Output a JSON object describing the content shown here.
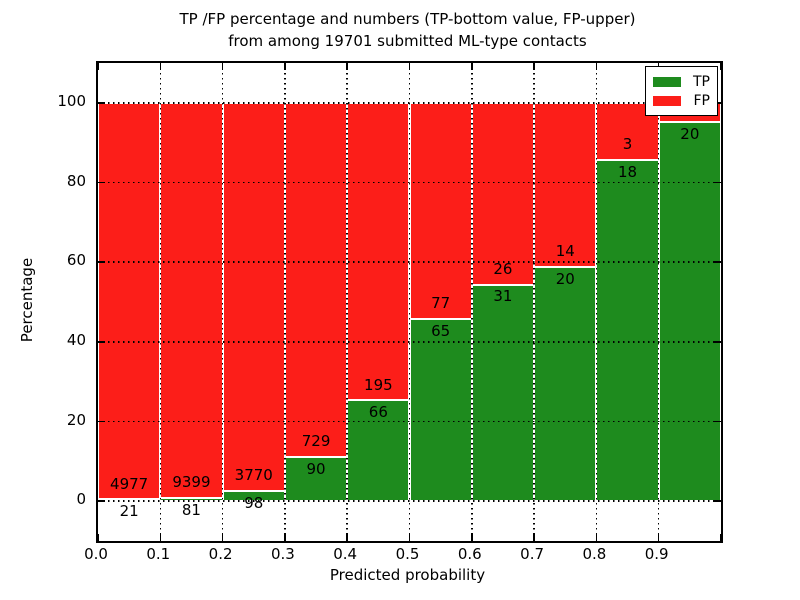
{
  "chart_data": {
    "type": "bar",
    "stacked": true,
    "normalized_to_percent": true,
    "title_line1": "TP /FP percentage and numbers (TP-bottom value, FP-upper)",
    "title_line2": "from among 19701 submitted ML-type contacts",
    "xlabel": "Predicted probability",
    "ylabel": "Percentage",
    "x_tick_labels": [
      "0.0",
      "0.1",
      "0.2",
      "0.3",
      "0.4",
      "0.5",
      "0.6",
      "0.7",
      "0.8",
      "0.9"
    ],
    "y_tick_values": [
      0,
      20,
      40,
      60,
      80,
      100
    ],
    "xlim": [
      0.0,
      1.0
    ],
    "ylim": [
      -10,
      110
    ],
    "grid": true,
    "colors": {
      "tp": "#1e8b1e",
      "fp": "#fc1e19"
    },
    "legend": {
      "position": "upper right",
      "items": [
        {
          "label": "TP",
          "color": "#1e8b1e"
        },
        {
          "label": "FP",
          "color": "#fc1e19"
        }
      ]
    },
    "bars": [
      {
        "bin_start": 0.0,
        "bin_end": 0.1,
        "tp": 21,
        "fp": 4977,
        "tp_label": "21",
        "fp_label": "4977"
      },
      {
        "bin_start": 0.1,
        "bin_end": 0.2,
        "tp": 81,
        "fp": 9399,
        "tp_label": "81",
        "fp_label": "9399"
      },
      {
        "bin_start": 0.2,
        "bin_end": 0.3,
        "tp": 98,
        "fp": 3770,
        "tp_label": "98",
        "fp_label": "3770"
      },
      {
        "bin_start": 0.3,
        "bin_end": 0.4,
        "tp": 90,
        "fp": 729,
        "tp_label": "90",
        "fp_label": "729"
      },
      {
        "bin_start": 0.4,
        "bin_end": 0.5,
        "tp": 66,
        "fp": 195,
        "tp_label": "66",
        "fp_label": "195"
      },
      {
        "bin_start": 0.5,
        "bin_end": 0.6,
        "tp": 65,
        "fp": 77,
        "tp_label": "65",
        "fp_label": "77"
      },
      {
        "bin_start": 0.6,
        "bin_end": 0.7,
        "tp": 31,
        "fp": 26,
        "tp_label": "31",
        "fp_label": "26"
      },
      {
        "bin_start": 0.7,
        "bin_end": 0.8,
        "tp": 20,
        "fp": 14,
        "tp_label": "20",
        "fp_label": "14"
      },
      {
        "bin_start": 0.8,
        "bin_end": 0.9,
        "tp": 18,
        "fp": 3,
        "tp_label": "18",
        "fp_label": "3"
      },
      {
        "bin_start": 0.9,
        "bin_end": 1.0,
        "tp": 20,
        "fp": 1,
        "tp_label": "20",
        "fp_label": ""
      }
    ]
  }
}
